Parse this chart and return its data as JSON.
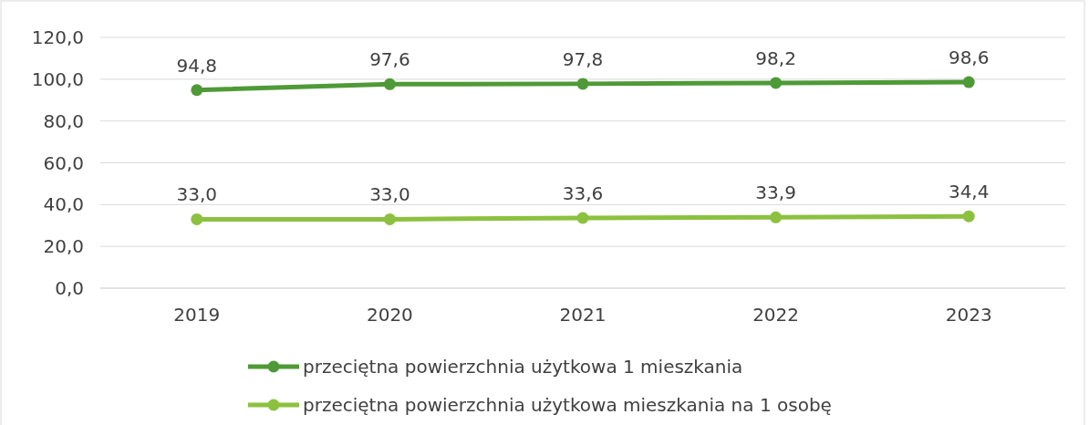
{
  "chart_data": {
    "type": "line",
    "categories": [
      "2019",
      "2020",
      "2021",
      "2022",
      "2023"
    ],
    "series": [
      {
        "name": "przeciętna powierzchnia użytkowa 1 mieszkania",
        "color": "#4e9a37",
        "values": [
          94.8,
          97.6,
          97.8,
          98.2,
          98.6
        ],
        "value_labels": [
          "94,8",
          "97,6",
          "97,8",
          "98,2",
          "98,6"
        ]
      },
      {
        "name": "przeciętna powierzchnia użytkowa mieszkania na 1 osobę",
        "color": "#8cc13f",
        "values": [
          33.0,
          33.0,
          33.6,
          33.9,
          34.4
        ],
        "value_labels": [
          "33,0",
          "33,0",
          "33,6",
          "33,9",
          "34,4"
        ]
      }
    ],
    "ylim": [
      0,
      120
    ],
    "yticks": [
      {
        "value": 0,
        "label": "0,0"
      },
      {
        "value": 20,
        "label": "20,0"
      },
      {
        "value": 40,
        "label": "40,0"
      },
      {
        "value": 60,
        "label": "60,0"
      },
      {
        "value": 80,
        "label": "80,0"
      },
      {
        "value": 100,
        "label": "100,0"
      },
      {
        "value": 120,
        "label": "120,0"
      }
    ],
    "grid": "y",
    "legend": "bottom",
    "marker": "circle",
    "line_style": "solid"
  }
}
